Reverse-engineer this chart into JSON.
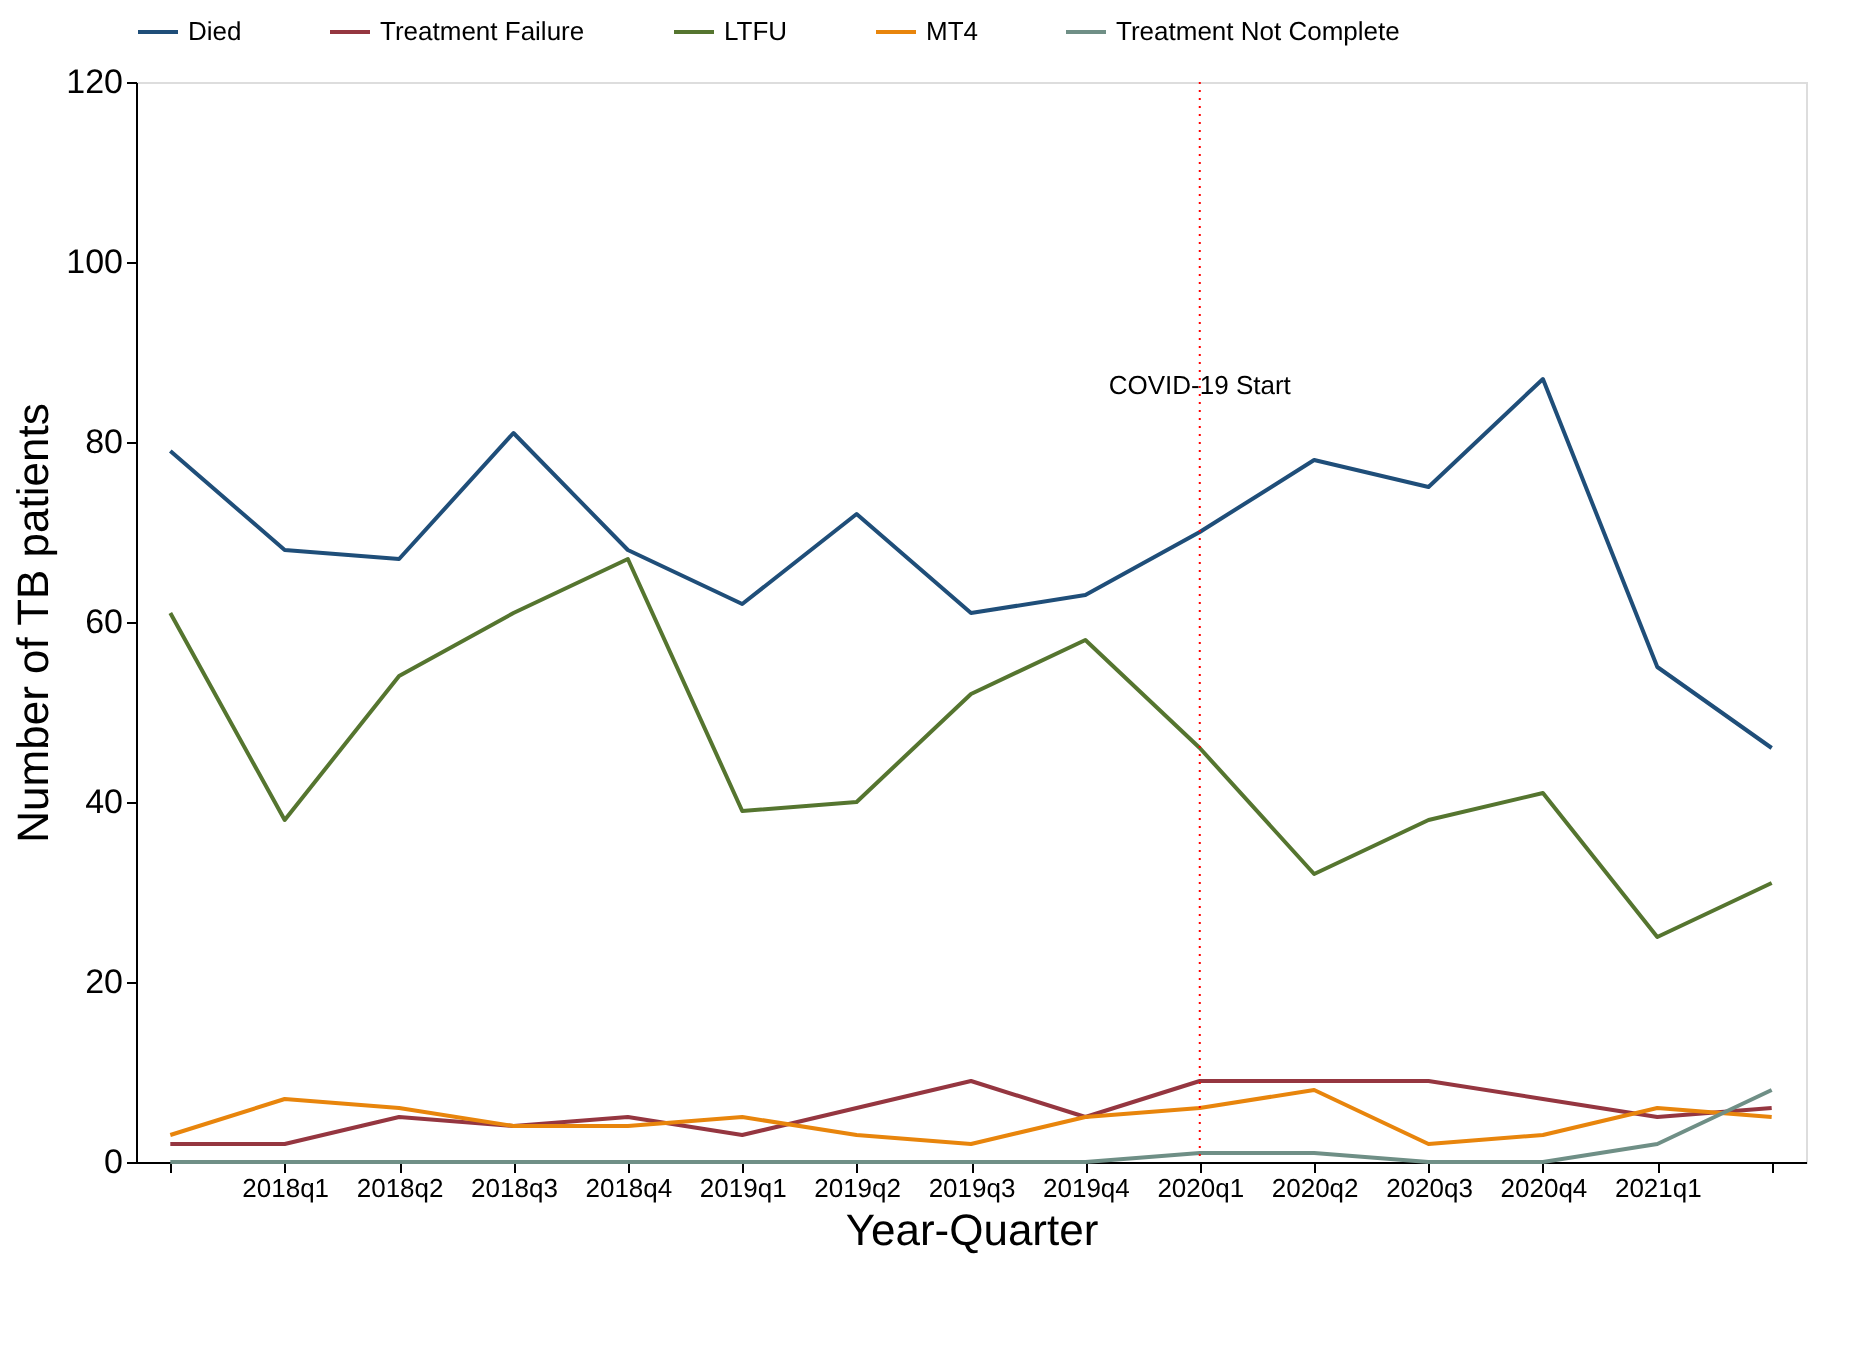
{
  "chart_data": {
    "type": "line",
    "xlabel": "Year-Quarter",
    "ylabel": "Number of TB patients",
    "categories": [
      null,
      "2018q1",
      "2018q2",
      "2018q3",
      "2018q4",
      "2019q1",
      "2019q2",
      "2019q3",
      "2019q4",
      "2020q1",
      "2020q2",
      "2020q3",
      "2020q4",
      "2021q1",
      null
    ],
    "series": [
      {
        "name": "Died",
        "color": "#1f4e79",
        "values": [
          79,
          68,
          67,
          81,
          68,
          62,
          72,
          61,
          63,
          70,
          78,
          75,
          87,
          55,
          46
        ]
      },
      {
        "name": "Treatment Failure",
        "color": "#953640",
        "values": [
          2,
          2,
          5,
          4,
          5,
          3,
          6,
          9,
          5,
          9,
          9,
          9,
          7,
          5,
          6
        ]
      },
      {
        "name": "LTFU",
        "color": "#55752f",
        "values": [
          61,
          38,
          54,
          61,
          67,
          39,
          40,
          52,
          58,
          46,
          32,
          38,
          41,
          25,
          31
        ]
      },
      {
        "name": "MT4",
        "color": "#e8850c",
        "values": [
          3,
          7,
          6,
          4,
          4,
          5,
          3,
          2,
          5,
          6,
          8,
          2,
          3,
          6,
          5
        ]
      },
      {
        "name": "Treatment Not Complete",
        "color": "#6f8f86",
        "values": [
          0,
          0,
          0,
          0,
          0,
          0,
          0,
          0,
          0,
          1,
          1,
          0,
          0,
          2,
          8
        ]
      }
    ],
    "ylim": [
      0,
      120
    ],
    "yticks": [
      0,
      20,
      40,
      60,
      80,
      100,
      120
    ],
    "ref_lines": [
      {
        "axis": "x",
        "value": "2020q1",
        "label": "COVID-19 Start",
        "color": "#ff0000",
        "line_style": "dotted"
      }
    ],
    "grid": false,
    "legend": "top",
    "marker": "none",
    "line_style": "solid"
  }
}
